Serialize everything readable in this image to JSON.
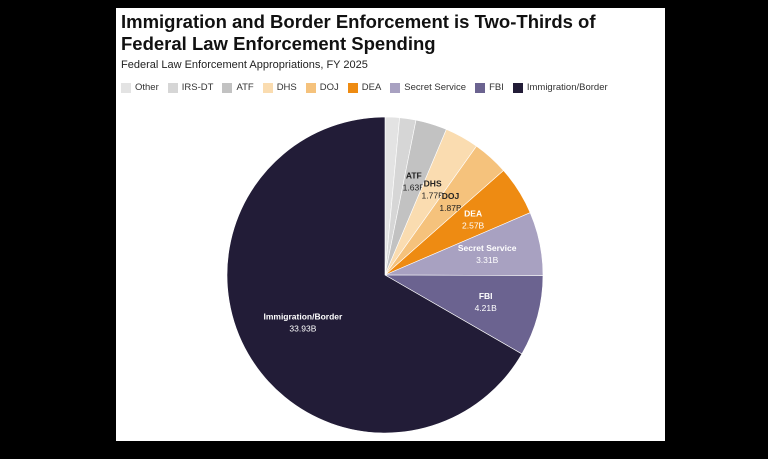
{
  "chart_data": {
    "type": "pie",
    "title": "Immigration and Border Enforcement is Two-Thirds of Federal Law Enforcement Spending",
    "subtitle": "Federal Law Enforcement Appropriations, FY 2025",
    "unit": "B",
    "legend_position": "top",
    "slices": [
      {
        "name": "Other",
        "value": 0.75,
        "value_label": "",
        "color": "#e3e3e3",
        "text_color": "#222"
      },
      {
        "name": "IRS-DT",
        "value": 0.85,
        "value_label": "",
        "color": "#d6d6d6",
        "text_color": "#222"
      },
      {
        "name": "ATF",
        "value": 1.63,
        "value_label": "1.63B",
        "color": "#c2c2c2",
        "text_color": "#222"
      },
      {
        "name": "DHS",
        "value": 1.77,
        "value_label": "1.77B",
        "color": "#fadcb0",
        "text_color": "#222"
      },
      {
        "name": "DOJ",
        "value": 1.87,
        "value_label": "1.87B",
        "color": "#f5c27c",
        "text_color": "#222"
      },
      {
        "name": "DEA",
        "value": 2.57,
        "value_label": "2.57B",
        "color": "#ee8b12",
        "text_color": "#fff"
      },
      {
        "name": "Secret Service",
        "value": 3.31,
        "value_label": "3.31B",
        "color": "#a8a1c1",
        "text_color": "#fff"
      },
      {
        "name": "FBI",
        "value": 4.21,
        "value_label": "4.21B",
        "color": "#6b6390",
        "text_color": "#fff"
      },
      {
        "name": "Immigration/Border",
        "value": 33.93,
        "value_label": "33.93B",
        "color": "#221c37",
        "text_color": "#fff"
      }
    ]
  }
}
